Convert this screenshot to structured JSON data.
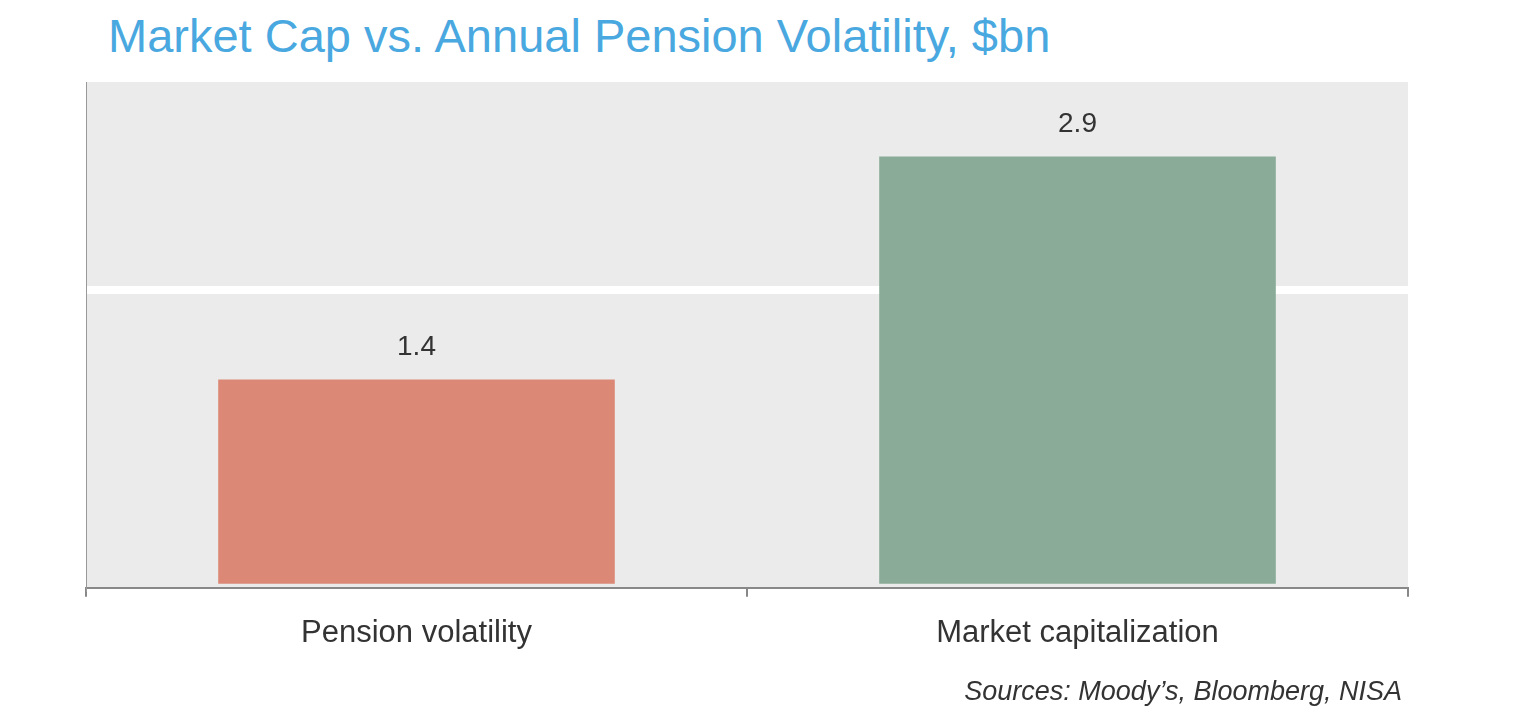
{
  "chart_data": {
    "type": "bar",
    "title": "Market Cap vs. Annual Pension Volatility, $bn",
    "categories": [
      "Pension volatility",
      "Market capitalization"
    ],
    "values": [
      1.4,
      2.9
    ],
    "colors": [
      "#db8976",
      "#8aab98"
    ],
    "ylim": [
      0,
      3.4
    ],
    "yticks": [
      0,
      2
    ],
    "grid": true,
    "data_labels": true,
    "tick_labels": "x",
    "source": "Sources: Moody’s, Bloomberg, NISA"
  }
}
